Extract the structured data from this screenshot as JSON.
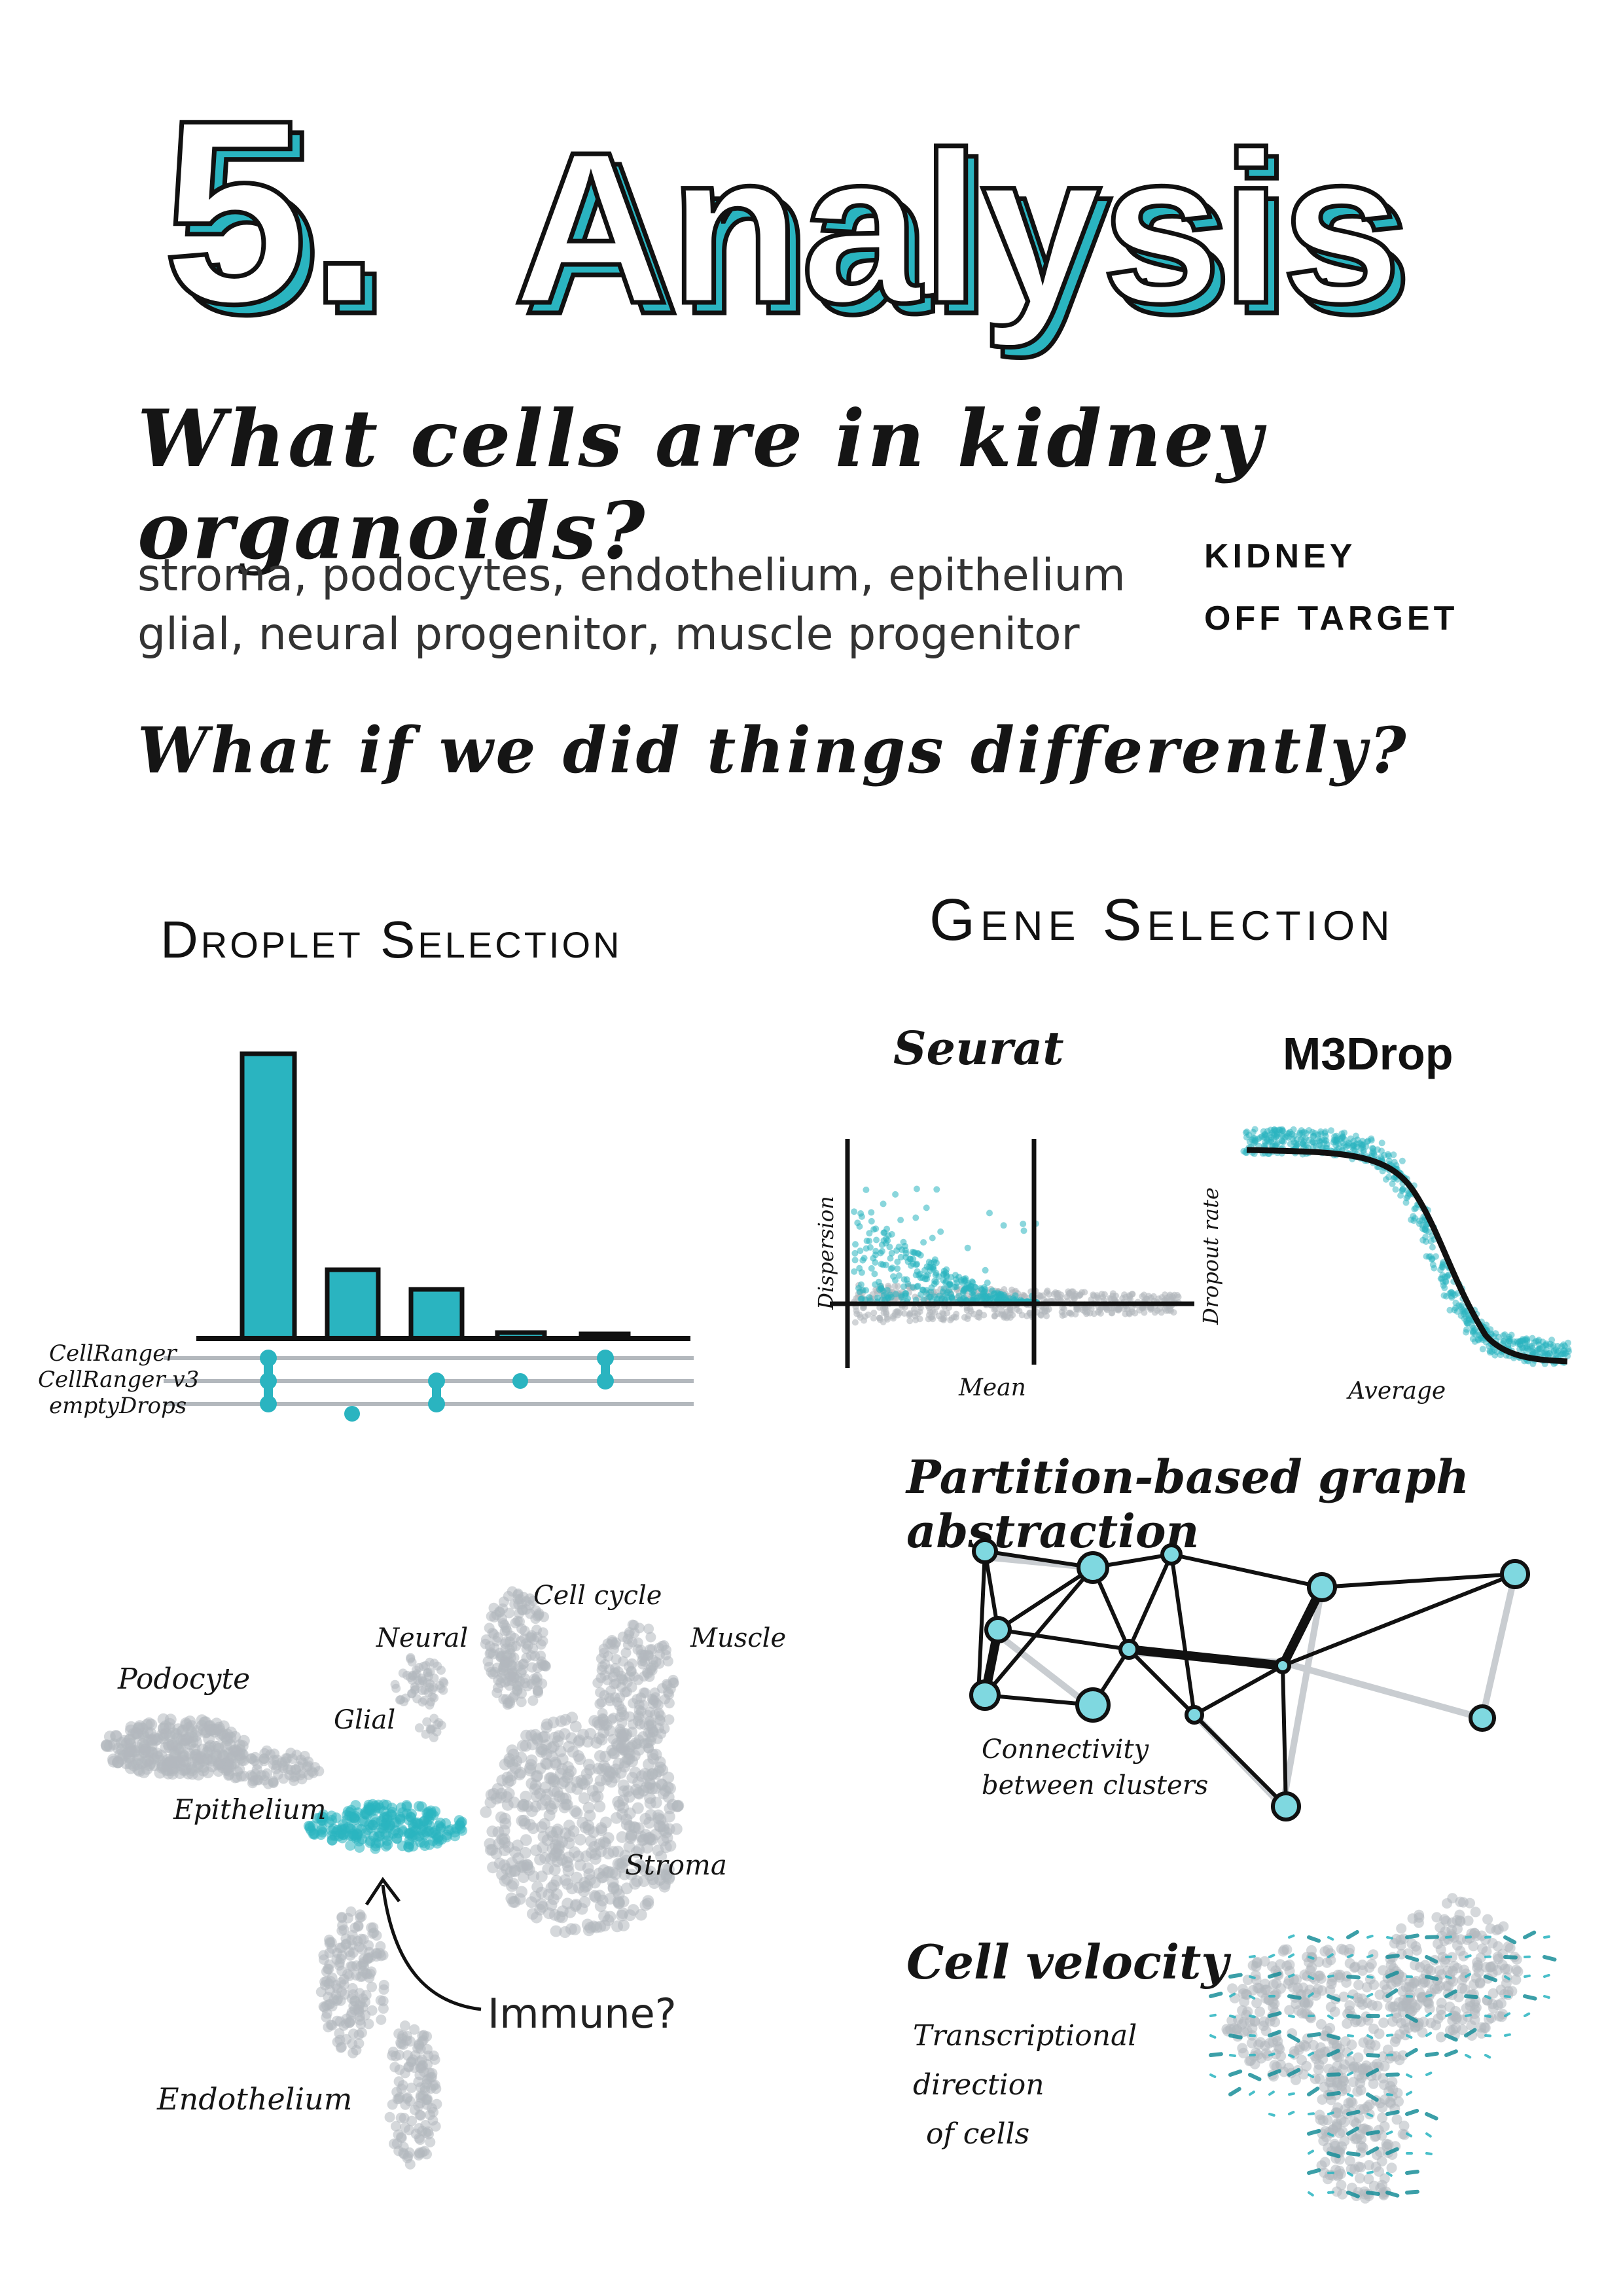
{
  "title": {
    "number": "5.",
    "word": "Analysis"
  },
  "questions": {
    "q1": "What cells are in kidney organoids?",
    "q2": "What if we did things differently?"
  },
  "cell_types": {
    "line1": "stroma, podocytes, endothelium, epithelium",
    "line2": "glial, neural progenitor, muscle progenitor",
    "tag_kidney": "KIDNEY",
    "tag_off_target": "OFF TARGET"
  },
  "droplet": {
    "heading": "Droplet Selection",
    "set_labels": [
      "CellRanger",
      "CellRanger v3",
      "emptyDrops"
    ]
  },
  "gene": {
    "heading": "Gene Selection",
    "seurat": {
      "title": "Seurat",
      "xlabel": "Mean",
      "ylabel": "Dispersion"
    },
    "m3drop": {
      "title": "M3Drop",
      "xlabel": "Average",
      "ylabel": "Dropout rate"
    }
  },
  "paga": {
    "heading": "Partition-based graph abstraction",
    "caption_line1": "Connectivity",
    "caption_line2": "between clusters"
  },
  "umap": {
    "labels": {
      "podocyte": "Podocyte",
      "glial": "Glial",
      "neural": "Neural",
      "cell_cycle": "Cell cycle",
      "muscle": "Muscle",
      "epithelium": "Epithelium",
      "stroma": "Stroma",
      "endothelium": "Endothelium",
      "immune": "Immune?"
    }
  },
  "velocity": {
    "heading": "Cell velocity",
    "desc1": "Transcriptional",
    "desc2": "direction",
    "desc3": "of cells"
  },
  "colors": {
    "teal": "#2ab4c0",
    "grey": "#b3b8bd",
    "ink": "#111111"
  }
}
